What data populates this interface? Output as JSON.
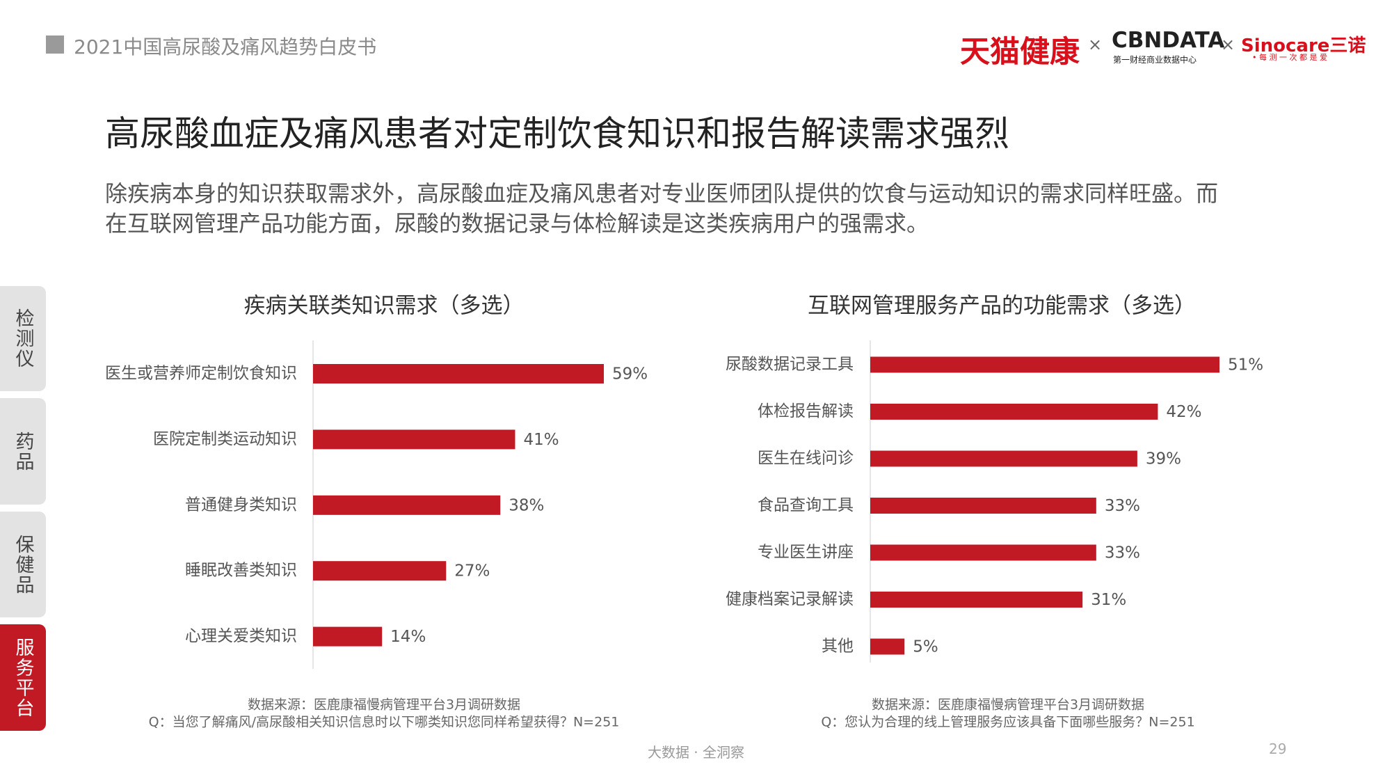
{
  "header": {
    "report_title": "2021中国高尿酸及痛风趋势白皮书",
    "logos": {
      "tmall": "天猫健康",
      "times_1": "×",
      "cbndata": "CBNDATA",
      "cbndata_sub": "第一财经商业数据中心",
      "times_2": "×",
      "sinocare": "Sinocare三诺",
      "sinocare_sub": "• 每 测 一 次 都 是 爱"
    }
  },
  "title": "高尿酸血症及痛风患者对定制饮食知识和报告解读需求强烈",
  "description": [
    "除疾病本身的知识获取需求外，高尿酸血症及痛风患者对专业医师团队提供的饮食与运动知识的需求同样旺盛。而",
    "在互联网管理产品功能方面，尿酸的数据记录与体检解读是这类疾病用户的强需求。"
  ],
  "side_tabs": [
    "检测仪",
    "药品",
    "保健品",
    "服务平台"
  ],
  "active_tab": 3,
  "chart_data": [
    {
      "type": "bar",
      "orientation": "horizontal",
      "title": "疾病关联类知识需求（多选）",
      "categories": [
        "医生或营养师定制饮食知识",
        "医院定制类运动知识",
        "普通健身类知识",
        "睡眠改善类知识",
        "心理关爱类知识"
      ],
      "values": [
        59,
        41,
        38,
        27,
        14
      ],
      "value_labels": [
        "59%",
        "41%",
        "38%",
        "27%",
        "14%"
      ],
      "color": "#c21a24",
      "notes": [
        "数据来源：医鹿康福慢病管理平台3月调研数据",
        "Q：当您了解痛风/高尿酸相关知识信息时以下哪类知识您同样希望获得？N=251"
      ]
    },
    {
      "type": "bar",
      "orientation": "horizontal",
      "title": "互联网管理服务产品的功能需求（多选）",
      "categories": [
        "尿酸数据记录工具",
        "体检报告解读",
        "医生在线问诊",
        "食品查询工具",
        "专业医生讲座",
        "健康档案记录解读",
        "其他"
      ],
      "values": [
        51,
        42,
        39,
        33,
        33,
        31,
        5
      ],
      "value_labels": [
        "51%",
        "42%",
        "39%",
        "33%",
        "33%",
        "31%",
        "5%"
      ],
      "color": "#c21a24",
      "notes": [
        "数据来源：医鹿康福慢病管理平台3月调研数据",
        "Q：您认为合理的线上管理服务应该具备下面哪些服务？N=251"
      ]
    }
  ],
  "footer": {
    "slogan": "大数据 · 全洞察",
    "page": "29"
  }
}
